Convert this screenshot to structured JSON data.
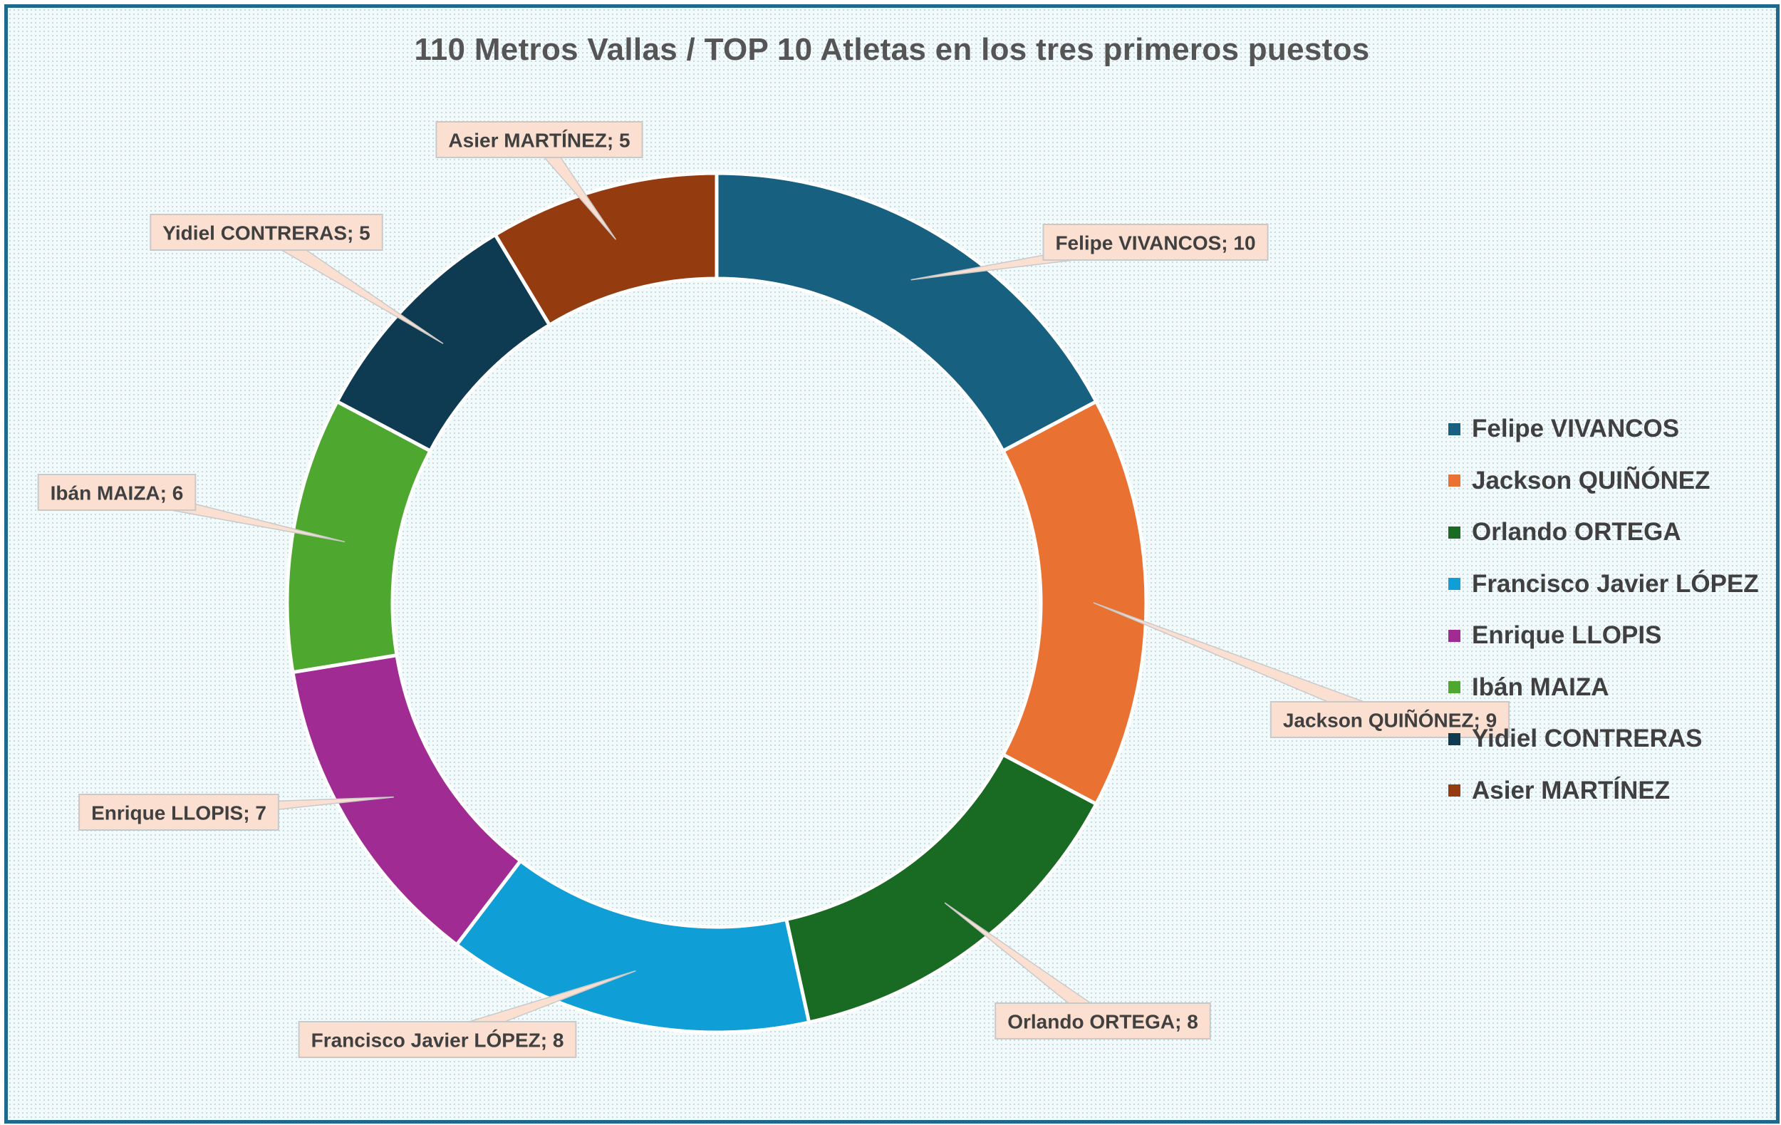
{
  "chart_data": {
    "type": "pie",
    "variant": "doughnut",
    "title": "110 Metros Vallas  / TOP 10 Atletas en los tres primeros puestos",
    "legend_position": "right",
    "series": [
      {
        "name": "Felipe VIVANCOS",
        "value": 10,
        "label": "Felipe VIVANCOS; 10",
        "color": "#17607f"
      },
      {
        "name": "Jackson QUIÑÓNEZ",
        "value": 9,
        "label": "Jackson QUIÑÓNEZ; 9",
        "color": "#e97132"
      },
      {
        "name": "Orlando ORTEGA",
        "value": 8,
        "label": "Orlando ORTEGA; 8",
        "color": "#196b24"
      },
      {
        "name": "Francisco Javier LÓPEZ",
        "value": 8,
        "label": "Francisco Javier LÓPEZ; 8",
        "color": "#0f9ed5"
      },
      {
        "name": "Enrique LLOPIS",
        "value": 7,
        "label": "Enrique LLOPIS; 7",
        "color": "#a02b93"
      },
      {
        "name": "Ibán MAIZA",
        "value": 6,
        "label": "Ibán MAIZA; 6",
        "color": "#4ea72e"
      },
      {
        "name": "Yidiel CONTRERAS",
        "value": 5,
        "label": "Yidiel CONTRERAS; 5",
        "color": "#0e3a52"
      },
      {
        "name": "Asier MARTÍNEZ",
        "value": 5,
        "label": "Asier MARTÍNEZ; 5",
        "color": "#953b10"
      }
    ]
  }
}
